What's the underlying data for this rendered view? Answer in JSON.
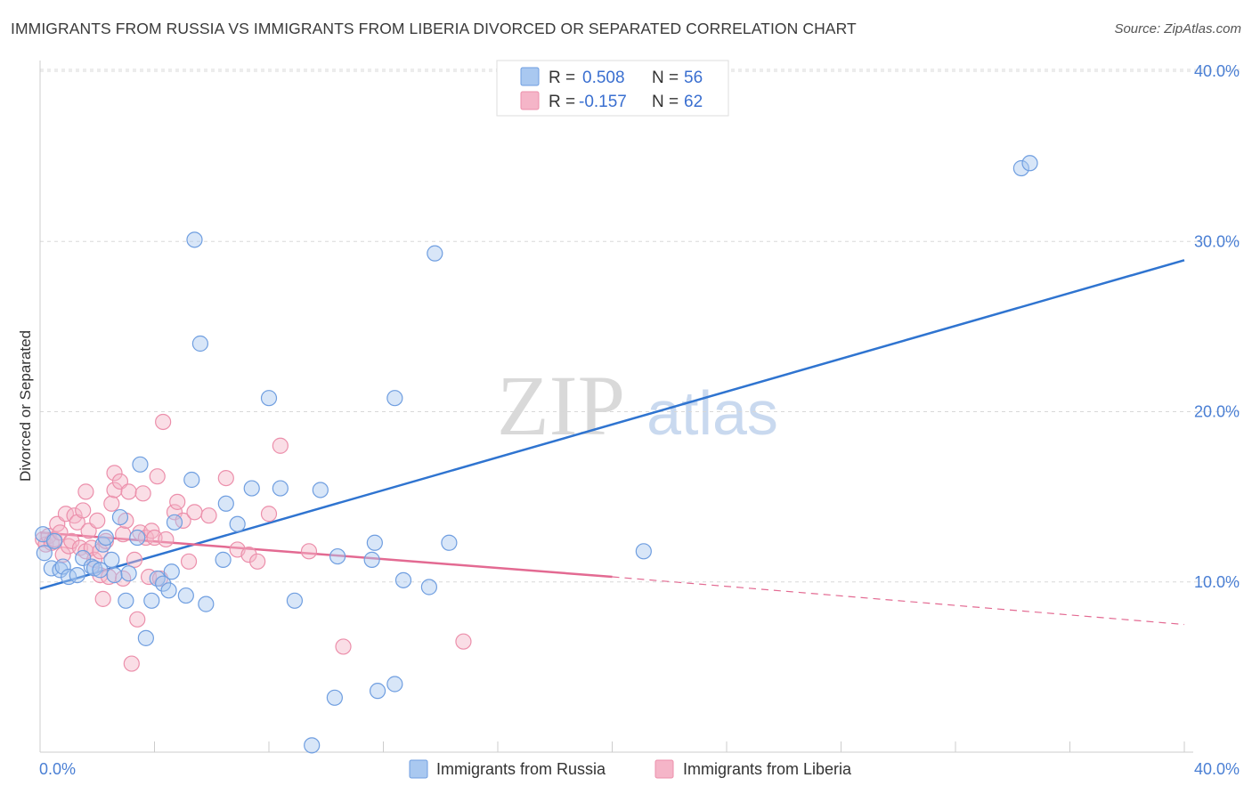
{
  "title": "IMMIGRANTS FROM RUSSIA VS IMMIGRANTS FROM LIBERIA DIVORCED OR SEPARATED CORRELATION CHART",
  "source": "Source: ZipAtlas.com",
  "watermark": {
    "zip": "ZIP",
    "atlas": "atlas"
  },
  "colors": {
    "russia_fill": "#a9c8f0",
    "russia_stroke": "#6f9ee0",
    "russia_line": "#2f74d0",
    "liberia_fill": "#f5b5c8",
    "liberia_stroke": "#ec8fab",
    "liberia_line": "#e36a92",
    "grid": "#d8d8d8",
    "tick_label": "#4a7fd4"
  },
  "legend": {
    "russia": {
      "r_label": "R =",
      "r_value": "0.508",
      "n_label": "N =",
      "n_value": "56"
    },
    "liberia": {
      "r_label": "R =",
      "r_value": "-0.157",
      "n_label": "N =",
      "n_value": "62"
    }
  },
  "chart_data": {
    "type": "scatter",
    "title": "IMMIGRANTS FROM RUSSIA VS IMMIGRANTS FROM LIBERIA DIVORCED OR SEPARATED CORRELATION CHART",
    "xlabel": "",
    "ylabel": "Divorced or Separated",
    "xlim": [
      0,
      40
    ],
    "ylim": [
      0,
      40
    ],
    "x_tick_labels": [
      "0.0%",
      "40.0%"
    ],
    "y_ticks": [
      10,
      20,
      30,
      40
    ],
    "y_tick_labels": [
      "10.0%",
      "20.0%",
      "30.0%",
      "40.0%"
    ],
    "grid": true,
    "legend_position": "top-center",
    "series": [
      {
        "name": "Immigrants from Russia",
        "color": "#6f9ee0",
        "points": [
          [
            0.1,
            12.8
          ],
          [
            0.15,
            11.7
          ],
          [
            0.4,
            10.8
          ],
          [
            0.5,
            12.4
          ],
          [
            0.7,
            10.7
          ],
          [
            0.8,
            10.9
          ],
          [
            1.0,
            10.3
          ],
          [
            1.3,
            10.4
          ],
          [
            1.5,
            11.4
          ],
          [
            1.8,
            10.9
          ],
          [
            1.9,
            10.8
          ],
          [
            2.1,
            10.7
          ],
          [
            2.2,
            12.2
          ],
          [
            2.3,
            12.6
          ],
          [
            2.5,
            11.3
          ],
          [
            2.6,
            10.4
          ],
          [
            2.8,
            13.8
          ],
          [
            3.0,
            8.9
          ],
          [
            3.1,
            10.5
          ],
          [
            3.4,
            12.6
          ],
          [
            3.5,
            16.9
          ],
          [
            3.7,
            6.7
          ],
          [
            3.9,
            8.9
          ],
          [
            4.1,
            10.2
          ],
          [
            4.3,
            9.9
          ],
          [
            4.5,
            9.5
          ],
          [
            4.6,
            10.6
          ],
          [
            4.7,
            13.5
          ],
          [
            5.1,
            9.2
          ],
          [
            5.3,
            16.0
          ],
          [
            5.4,
            30.1
          ],
          [
            5.6,
            24.0
          ],
          [
            5.8,
            8.7
          ],
          [
            6.4,
            11.3
          ],
          [
            6.5,
            14.6
          ],
          [
            6.9,
            13.4
          ],
          [
            7.4,
            15.5
          ],
          [
            8.0,
            20.8
          ],
          [
            8.4,
            15.5
          ],
          [
            8.9,
            8.9
          ],
          [
            9.5,
            0.4
          ],
          [
            9.8,
            15.4
          ],
          [
            10.3,
            3.2
          ],
          [
            10.4,
            11.5
          ],
          [
            11.6,
            11.3
          ],
          [
            11.7,
            12.3
          ],
          [
            11.8,
            3.6
          ],
          [
            12.4,
            4.0
          ],
          [
            12.4,
            20.8
          ],
          [
            12.7,
            10.1
          ],
          [
            13.6,
            9.7
          ],
          [
            13.8,
            29.3
          ],
          [
            14.3,
            12.3
          ],
          [
            21.1,
            11.8
          ],
          [
            34.3,
            34.3
          ],
          [
            34.6,
            34.6
          ]
        ]
      },
      {
        "name": "Immigrants from Liberia",
        "color": "#ec8fab",
        "points": [
          [
            0.1,
            12.5
          ],
          [
            0.2,
            12.2
          ],
          [
            0.3,
            12.7
          ],
          [
            0.4,
            12.3
          ],
          [
            0.5,
            12.5
          ],
          [
            0.6,
            13.4
          ],
          [
            0.7,
            12.9
          ],
          [
            0.8,
            11.6
          ],
          [
            0.9,
            14.0
          ],
          [
            1.0,
            12.1
          ],
          [
            1.1,
            12.4
          ],
          [
            1.2,
            13.9
          ],
          [
            1.3,
            13.5
          ],
          [
            1.4,
            12.0
          ],
          [
            1.5,
            14.2
          ],
          [
            1.6,
            15.3
          ],
          [
            1.6,
            11.8
          ],
          [
            1.7,
            13.0
          ],
          [
            1.8,
            12.0
          ],
          [
            1.9,
            11.3
          ],
          [
            2.0,
            13.6
          ],
          [
            2.1,
            11.8
          ],
          [
            2.1,
            10.4
          ],
          [
            2.2,
            9.0
          ],
          [
            2.3,
            12.4
          ],
          [
            2.4,
            10.3
          ],
          [
            2.5,
            14.6
          ],
          [
            2.6,
            15.4
          ],
          [
            2.6,
            16.4
          ],
          [
            2.8,
            15.9
          ],
          [
            2.9,
            10.2
          ],
          [
            2.9,
            12.8
          ],
          [
            3.0,
            13.6
          ],
          [
            3.1,
            15.3
          ],
          [
            3.2,
            5.2
          ],
          [
            3.3,
            11.3
          ],
          [
            3.4,
            7.8
          ],
          [
            3.5,
            12.9
          ],
          [
            3.6,
            15.2
          ],
          [
            3.7,
            12.6
          ],
          [
            3.8,
            10.3
          ],
          [
            3.9,
            13.0
          ],
          [
            4.0,
            12.6
          ],
          [
            4.1,
            16.2
          ],
          [
            4.2,
            10.2
          ],
          [
            4.3,
            19.4
          ],
          [
            4.4,
            12.5
          ],
          [
            4.7,
            14.1
          ],
          [
            4.8,
            14.7
          ],
          [
            5.0,
            13.6
          ],
          [
            5.2,
            11.2
          ],
          [
            5.4,
            14.1
          ],
          [
            5.9,
            13.9
          ],
          [
            6.5,
            16.1
          ],
          [
            6.9,
            11.9
          ],
          [
            7.3,
            11.6
          ],
          [
            7.6,
            11.2
          ],
          [
            8.0,
            14.0
          ],
          [
            8.4,
            18.0
          ],
          [
            9.4,
            11.8
          ],
          [
            10.6,
            6.2
          ],
          [
            14.8,
            6.5
          ]
        ]
      }
    ],
    "trend_lines": [
      {
        "name": "Immigrants from Russia",
        "x": [
          0,
          40
        ],
        "y": [
          9.6,
          28.9
        ],
        "style": "solid"
      },
      {
        "name": "Immigrants from Liberia",
        "x": [
          0,
          20
        ],
        "y": [
          12.9,
          10.3
        ],
        "style": "solid"
      },
      {
        "name": "Immigrants from Liberia",
        "x": [
          20,
          40
        ],
        "y": [
          10.3,
          7.5
        ],
        "style": "dashed"
      }
    ]
  }
}
